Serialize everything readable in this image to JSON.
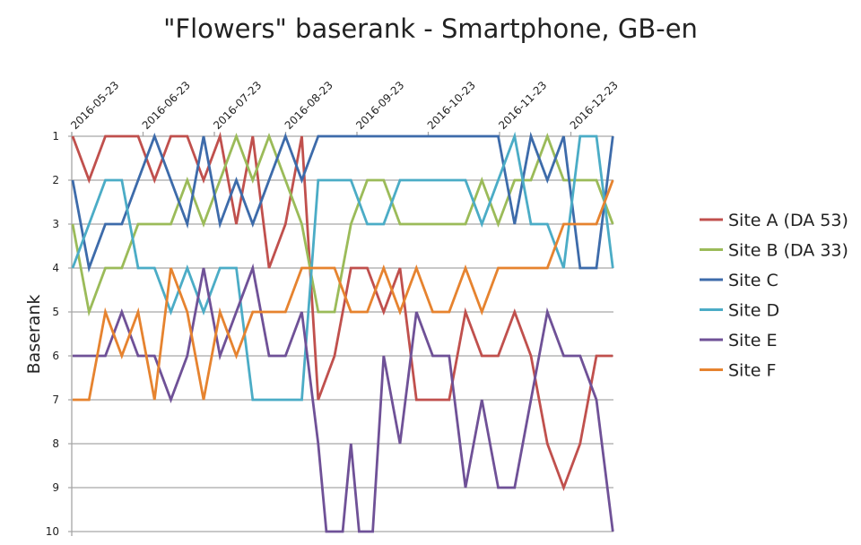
{
  "chart_data": {
    "type": "line",
    "title": "\"Flowers\" baserank - Smartphone, GB-en",
    "xlabel": "",
    "ylabel": "Baserank",
    "ylim": [
      1,
      10
    ],
    "y_inverted": true,
    "y_ticks": [
      "1",
      "2",
      "3",
      "4",
      "5",
      "6",
      "7",
      "8",
      "9",
      "10"
    ],
    "x_ticks": [
      "2016-05-23",
      "2016-06-23",
      "2016-07-23",
      "2016-08-23",
      "2016-09-23",
      "2016-10-23",
      "2016-11-23",
      "2016-12-23"
    ],
    "x_interval": "weekly",
    "grid": true,
    "legend_position": "right",
    "series": [
      {
        "name": "Site A (DA 53)",
        "color": "#C0504D",
        "values": [
          1,
          2,
          1,
          1,
          1,
          2,
          1,
          1,
          2,
          1,
          3,
          1,
          4,
          3,
          1,
          7,
          6,
          4,
          4,
          5,
          4,
          7,
          7,
          7,
          5,
          6,
          6,
          5,
          6,
          8,
          9,
          8,
          6,
          6
        ]
      },
      {
        "name": "Site B (DA 33)",
        "color": "#9BBB59",
        "values": [
          3,
          5,
          4,
          4,
          3,
          3,
          3,
          2,
          3,
          2,
          1,
          2,
          1,
          2,
          3,
          5,
          5,
          3,
          2,
          2,
          3,
          3,
          3,
          3,
          3,
          2,
          3,
          2,
          2,
          1,
          2,
          2,
          2,
          3
        ]
      },
      {
        "name": "Site C",
        "color": "#3D6BAA",
        "values": [
          2,
          4,
          3,
          3,
          2,
          1,
          2,
          3,
          1,
          3,
          2,
          3,
          2,
          1,
          2,
          1,
          1,
          1,
          1,
          1,
          1,
          1,
          1,
          1,
          1,
          1,
          1,
          3,
          1,
          2,
          1,
          4,
          4,
          1
        ]
      },
      {
        "name": "Site D",
        "color": "#4BACC6",
        "values": [
          4,
          3,
          2,
          2,
          4,
          4,
          5,
          4,
          5,
          4,
          4,
          7,
          7,
          7,
          7,
          2,
          2,
          2,
          3,
          3,
          2,
          2,
          2,
          2,
          2,
          3,
          2,
          1,
          3,
          3,
          4,
          1,
          1,
          4
        ]
      },
      {
        "name": "Site E",
        "color": "#6F5197",
        "values": [
          6,
          6,
          6,
          5,
          6,
          6,
          7,
          6,
          4,
          6,
          5,
          4,
          6,
          6,
          5,
          8,
          12,
          8,
          12,
          6,
          8,
          5,
          6,
          6,
          9,
          7,
          9,
          9,
          7,
          5,
          6,
          6,
          7,
          10
        ]
      },
      {
        "name": "Site F",
        "color": "#E6832F",
        "values": [
          7,
          7,
          5,
          6,
          5,
          7,
          4,
          5,
          7,
          5,
          6,
          5,
          5,
          5,
          4,
          4,
          4,
          5,
          5,
          4,
          5,
          4,
          5,
          5,
          4,
          5,
          4,
          4,
          4,
          4,
          3,
          3,
          3,
          2
        ]
      }
    ]
  }
}
